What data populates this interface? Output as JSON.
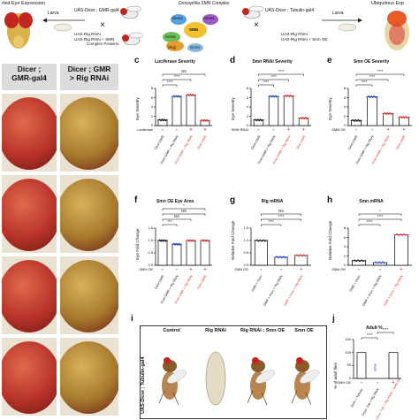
{
  "header": {
    "left_title": "rted Eye Expression",
    "cross_left_top": "UAS-Dicer ; GMR-gal4",
    "larva_left": "Larva",
    "cross_left_bottom": [
      "UAS-Rig RNAi",
      "UAS-Rig RNAi + SMN",
      "Complex Proteins"
    ],
    "complex_title": "Drosophila SMN Complex",
    "complex_nodes": [
      "Gem3",
      "Gem4",
      "SMN",
      "Gem5",
      "(Rig)",
      "Gem2"
    ],
    "cross_right_top": "UAS-Dicer ; Tubulin-gal4",
    "larva_right": "Larva",
    "right_title": "Ubiquitous Exp",
    "cross_right_bottom": [
      "UAS-Rig RNAi",
      "UAS-Rig RNAi + Smn OE"
    ]
  },
  "eye_columns": {
    "col1": "Dicer ;\nGMR-gal4",
    "col2": "Dicer ; GMR\n> Rig RNAi",
    "eye_colors": {
      "normal": "#b8332a",
      "rnai": "#a77a2e"
    }
  },
  "panels": {
    "c": {
      "letter": "c",
      "title": "Luciferase Severity",
      "ylabel": "Eye Severity",
      "ticks": [
        "8",
        "6",
        "4",
        "2",
        "0"
      ],
      "row_label": "Luciferase",
      "signs": [
        "-",
        "-",
        "+",
        "+"
      ],
      "stars": [
        "****",
        "****",
        "NS"
      ],
      "xcats": [
        "Dicer;GMR",
        "Dicer;GMR > Rig RNAi",
        "Dicer;GMR > Rig RNAi",
        "Dicer;GMR"
      ]
    },
    "d": {
      "letter": "d",
      "title": "Smn RNAi Severity",
      "ylabel": "Eye Severity",
      "ticks": [
        "8",
        "6",
        "4",
        "2",
        "0"
      ],
      "row_label": "SMN RNAi",
      "signs": [
        "-",
        "-",
        "+",
        "+"
      ],
      "stars": [
        "****",
        "****",
        "****"
      ],
      "xcats": [
        "Dicer;GMR",
        "Dicer;GMR > Rig RNAi",
        "Dicer;GMR > Rig RNAi",
        "Dicer;GMR"
      ]
    },
    "e": {
      "letter": "e",
      "title": "Smn OE Severity",
      "ylabel": "Eye Severity",
      "ticks": [
        "8",
        "6",
        "4",
        "2",
        "0"
      ],
      "row_label": "SMN OE",
      "signs": [
        "-",
        "-",
        "+",
        "+"
      ],
      "stars": [
        "****",
        "****",
        "****"
      ],
      "xcats": [
        "Dicer;GMR",
        "Dicer;GMR > Rig RNAi",
        "Dicer;GMR > Rig RNAi",
        "Dicer;GMR"
      ]
    },
    "f": {
      "letter": "f",
      "title": "Smn OE Eye Area",
      "ylabel": "Eye Fold Change",
      "ticks": [
        "1.5",
        "1.0",
        "0.5",
        "0.0"
      ],
      "row_label": "SMN OE",
      "signs": [
        "-",
        "-",
        "+",
        "+"
      ],
      "stars": [
        "***",
        "NS",
        "NS",
        "*"
      ],
      "xcats": [
        "Dicer;GMR",
        "Dicer;GMR > Rig RNAi",
        "Dicer;GMR > Rig RNAi",
        "Dicer;GMR"
      ]
    },
    "g": {
      "letter": "g",
      "title": "Rig mRNA",
      "ylabel": "Relative Fold Change",
      "ticks": [
        "1.5",
        "1.0",
        "0.5",
        "0.0"
      ],
      "row_label": "SMN OE",
      "signs": [
        "-",
        "-",
        "+"
      ],
      "stars": [
        "****",
        "****",
        "NS"
      ],
      "xcats": [
        "GMR > Dicer",
        "GMR > Dicer > Rig RNAi",
        "GMR > Dicer > Rig RNAi"
      ]
    },
    "h": {
      "letter": "h",
      "title": "Smn mRNA",
      "ylabel": "Relative Fold Change",
      "ticks": [
        "8",
        "6",
        "4",
        "2",
        "0"
      ],
      "row_label": "SMN OE",
      "signs": [
        "-",
        "-",
        "+"
      ],
      "stars": [
        "****",
        "****",
        "*"
      ],
      "xcats": [
        "GMR > Dicer",
        "GMR > Dicer > Rig RNAi",
        "GMR > Dicer > Rig RNAi"
      ]
    }
  },
  "chart_data": [
    {
      "type": "bar",
      "title": "Luciferase Severity",
      "ylabel": "Eye Severity",
      "ylim": [
        0,
        8
      ],
      "categories": [
        "Dicer;GMR",
        "Dicer;GMR > Rig RNAi",
        "Dicer;GMR > Rig RNAi + Luciferase",
        "Dicer;GMR + Luciferase"
      ],
      "values": [
        1.2,
        6.3,
        6.6,
        1.1
      ]
    },
    {
      "type": "bar",
      "title": "Smn RNAi Severity",
      "ylabel": "Eye Severity",
      "ylim": [
        0,
        8
      ],
      "categories": [
        "Dicer;GMR",
        "Dicer;GMR > Rig RNAi",
        "Dicer;GMR > Rig RNAi + SMN RNAi",
        "Dicer;GMR + SMN RNAi"
      ],
      "values": [
        1.2,
        6.3,
        6.4,
        1.6
      ]
    },
    {
      "type": "bar",
      "title": "Smn OE Severity",
      "ylabel": "Eye Severity",
      "ylim": [
        0,
        8
      ],
      "categories": [
        "Dicer;GMR",
        "Dicer;GMR > Rig RNAi",
        "Dicer;GMR > Rig RNAi + SMN OE",
        "Dicer;GMR + SMN OE"
      ],
      "values": [
        1.1,
        6.2,
        2.6,
        1.8
      ]
    },
    {
      "type": "bar",
      "title": "Smn OE Eye Area",
      "ylabel": "Eye Fold Change",
      "ylim": [
        0,
        1.5
      ],
      "categories": [
        "Dicer;GMR",
        "Dicer;GMR > Rig RNAi",
        "Dicer;GMR > Rig RNAi + SMN OE",
        "Dicer;GMR + SMN OE"
      ],
      "values": [
        1.0,
        0.85,
        1.0,
        1.0
      ]
    },
    {
      "type": "bar",
      "title": "Rig mRNA",
      "ylabel": "Relative Fold Change",
      "ylim": [
        0,
        1.5
      ],
      "categories": [
        "GMR > Dicer",
        "GMR > Dicer > Rig RNAi",
        "GMR > Dicer > Rig RNAi + SMN OE"
      ],
      "values": [
        1.0,
        0.33,
        0.4
      ]
    },
    {
      "type": "bar",
      "title": "Smn mRNA",
      "ylabel": "Relative Fold Change",
      "ylim": [
        0,
        8
      ],
      "categories": [
        "GMR > Dicer",
        "GMR > Dicer > Rig RNAi",
        "GMR > Dicer > Rig RNAi + SMN OE"
      ],
      "values": [
        1.0,
        0.6,
        6.6
      ]
    },
    {
      "type": "bar",
      "title": "Adult %",
      "ylabel": "% of adult flies",
      "ylim": [
        0,
        150
      ],
      "categories": [
        "Dicer > Tubulin",
        "Dicer; Tub > Rig RNAi",
        "Dicer; Tub > Rig RNAi + SMN OE"
      ],
      "values": [
        100,
        0,
        100
      ]
    }
  ],
  "panel_i": {
    "letter": "i",
    "side_label": "UAS-Dicer ; Tubulin-gal4",
    "columns": [
      "Control",
      "Rig RNAi",
      "Rig RNAi ; Smn OE",
      "Smn OE"
    ]
  },
  "panel_j": {
    "letter": "j",
    "title": "Adult %",
    "ylabel": "% of adult flies",
    "ticks": [
      "150",
      "100",
      "50",
      "0"
    ],
    "row_label": "SMN OE",
    "signs": [
      "-",
      "-",
      "+"
    ],
    "stars": [
      "****",
      "****"
    ],
    "lethal": "lethal"
  }
}
